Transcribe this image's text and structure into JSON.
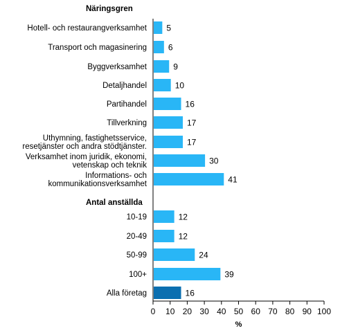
{
  "chart_data": {
    "type": "bar",
    "orientation": "horizontal",
    "xlabel": "%",
    "xlim": [
      0,
      100
    ],
    "xticks": [
      0,
      10,
      20,
      30,
      40,
      50,
      60,
      70,
      80,
      90,
      100
    ],
    "grid": false,
    "colors": {
      "bar": "#29b6f6",
      "highlight": "#0b6fb0",
      "axis": "#000000"
    },
    "groups": [
      {
        "heading": "Näringsgren",
        "bars": [
          {
            "label": [
              "Hotell- och restaurangverksamhet"
            ],
            "value": 5
          },
          {
            "label": [
              "Transport och magasinering"
            ],
            "value": 6
          },
          {
            "label": [
              "Byggverksamhet"
            ],
            "value": 9
          },
          {
            "label": [
              "Detaljhandel"
            ],
            "value": 10
          },
          {
            "label": [
              "Partihandel"
            ],
            "value": 16
          },
          {
            "label": [
              "Tillverkning"
            ],
            "value": 17
          },
          {
            "label": [
              "Uthymning, fastighetsservice,",
              "resetjänster och andra stödtjänster."
            ],
            "value": 17
          },
          {
            "label": [
              "Verksamhet inom juridik, ekonomi,",
              "vetenskap och teknik"
            ],
            "value": 30
          },
          {
            "label": [
              "Informations- och",
              "kommunikationsverksamhet"
            ],
            "value": 41
          }
        ]
      },
      {
        "heading": "Antal anställda",
        "bars": [
          {
            "label": [
              "10-19"
            ],
            "value": 12
          },
          {
            "label": [
              "20-49"
            ],
            "value": 12
          },
          {
            "label": [
              "50-99"
            ],
            "value": 24
          },
          {
            "label": [
              "100+"
            ],
            "value": 39
          }
        ]
      },
      {
        "heading": "",
        "bars": [
          {
            "label": [
              "Alla företag"
            ],
            "value": 16,
            "highlight": true
          }
        ]
      }
    ]
  }
}
